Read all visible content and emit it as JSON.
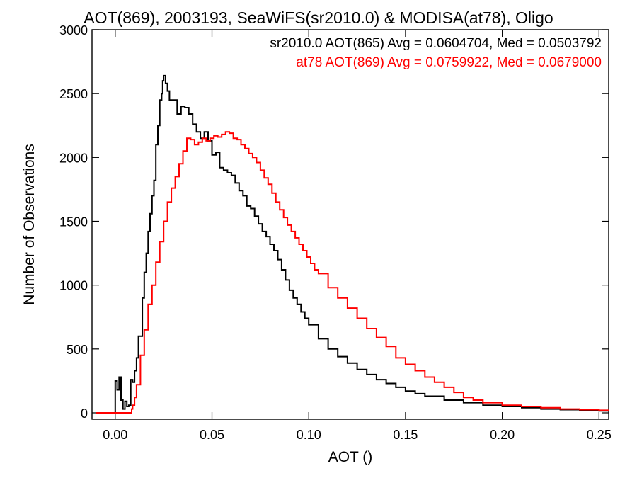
{
  "chart_data": {
    "type": "line",
    "title": "AOT(869), 2003193, SeaWiFS(sr2010.0) & MODISA(at78), Oligo",
    "xlabel": "AOT ()",
    "ylabel": "Number of Observations",
    "xlim": [
      -0.012,
      0.255
    ],
    "ylim": [
      -50,
      3000
    ],
    "x_ticks": [
      0.0,
      0.05,
      0.1,
      0.15,
      0.2,
      0.25
    ],
    "x_tick_labels": [
      "0.00",
      "0.05",
      "0.10",
      "0.15",
      "0.20",
      "0.25"
    ],
    "y_ticks": [
      0,
      500,
      1000,
      1500,
      2000,
      2500,
      3000
    ],
    "y_tick_labels": [
      "0",
      "500",
      "1000",
      "1500",
      "2000",
      "2500",
      "3000"
    ],
    "grid": false,
    "legend_position": "top-right",
    "colors": {
      "black_series": "#000000",
      "red_series": "#ff0000"
    },
    "series": [
      {
        "name": "sr2010.0 AOT(865) Avg = 0.0604704, Med = 0.0503792",
        "color": "#000000",
        "step": true,
        "points": [
          [
            -0.01,
            0
          ],
          [
            -0.005,
            0
          ],
          [
            -0.001,
            0
          ],
          [
            0.0,
            250
          ],
          [
            0.001,
            180
          ],
          [
            0.002,
            280
          ],
          [
            0.003,
            100
          ],
          [
            0.004,
            30
          ],
          [
            0.005,
            90
          ],
          [
            0.006,
            50
          ],
          [
            0.007,
            60
          ],
          [
            0.008,
            260
          ],
          [
            0.009,
            240
          ],
          [
            0.01,
            330
          ],
          [
            0.011,
            430
          ],
          [
            0.012,
            600
          ],
          [
            0.014,
            900
          ],
          [
            0.015,
            1100
          ],
          [
            0.016,
            1250
          ],
          [
            0.017,
            1420
          ],
          [
            0.018,
            1560
          ],
          [
            0.019,
            1700
          ],
          [
            0.02,
            1820
          ],
          [
            0.021,
            2100
          ],
          [
            0.022,
            2250
          ],
          [
            0.023,
            2450
          ],
          [
            0.024,
            2500
          ],
          [
            0.0245,
            2600
          ],
          [
            0.025,
            2640
          ],
          [
            0.026,
            2580
          ],
          [
            0.027,
            2520
          ],
          [
            0.028,
            2450
          ],
          [
            0.03,
            2450
          ],
          [
            0.032,
            2340
          ],
          [
            0.034,
            2400
          ],
          [
            0.036,
            2390
          ],
          [
            0.038,
            2340
          ],
          [
            0.04,
            2260
          ],
          [
            0.042,
            2200
          ],
          [
            0.044,
            2150
          ],
          [
            0.046,
            2200
          ],
          [
            0.048,
            2130
          ],
          [
            0.05,
            2020
          ],
          [
            0.052,
            2040
          ],
          [
            0.054,
            1920
          ],
          [
            0.056,
            1900
          ],
          [
            0.058,
            1880
          ],
          [
            0.06,
            1860
          ],
          [
            0.062,
            1800
          ],
          [
            0.064,
            1740
          ],
          [
            0.066,
            1700
          ],
          [
            0.068,
            1620
          ],
          [
            0.07,
            1600
          ],
          [
            0.072,
            1540
          ],
          [
            0.074,
            1480
          ],
          [
            0.076,
            1420
          ],
          [
            0.078,
            1380
          ],
          [
            0.08,
            1320
          ],
          [
            0.082,
            1270
          ],
          [
            0.084,
            1200
          ],
          [
            0.086,
            1120
          ],
          [
            0.088,
            1040
          ],
          [
            0.09,
            960
          ],
          [
            0.092,
            900
          ],
          [
            0.094,
            850
          ],
          [
            0.096,
            790
          ],
          [
            0.098,
            740
          ],
          [
            0.1,
            690
          ],
          [
            0.105,
            580
          ],
          [
            0.11,
            500
          ],
          [
            0.115,
            440
          ],
          [
            0.12,
            390
          ],
          [
            0.125,
            340
          ],
          [
            0.13,
            300
          ],
          [
            0.135,
            260
          ],
          [
            0.14,
            230
          ],
          [
            0.145,
            200
          ],
          [
            0.15,
            170
          ],
          [
            0.155,
            150
          ],
          [
            0.16,
            130
          ],
          [
            0.17,
            100
          ],
          [
            0.18,
            80
          ],
          [
            0.19,
            60
          ],
          [
            0.2,
            50
          ],
          [
            0.21,
            40
          ],
          [
            0.22,
            30
          ],
          [
            0.23,
            25
          ],
          [
            0.24,
            20
          ],
          [
            0.25,
            15
          ],
          [
            0.255,
            10
          ]
        ]
      },
      {
        "name": "at78 AOT(869) Avg = 0.0759922, Med = 0.0679000",
        "color": "#ff0000",
        "step": true,
        "points": [
          [
            -0.01,
            0
          ],
          [
            0.0,
            0
          ],
          [
            0.005,
            0
          ],
          [
            0.008,
            0
          ],
          [
            0.0085,
            30
          ],
          [
            0.009,
            60
          ],
          [
            0.01,
            120
          ],
          [
            0.011,
            220
          ],
          [
            0.013,
            450
          ],
          [
            0.015,
            650
          ],
          [
            0.017,
            850
          ],
          [
            0.019,
            1000
          ],
          [
            0.021,
            1180
          ],
          [
            0.023,
            1340
          ],
          [
            0.025,
            1500
          ],
          [
            0.027,
            1650
          ],
          [
            0.029,
            1760
          ],
          [
            0.031,
            1850
          ],
          [
            0.033,
            1950
          ],
          [
            0.035,
            2050
          ],
          [
            0.037,
            2150
          ],
          [
            0.039,
            2140
          ],
          [
            0.041,
            2100
          ],
          [
            0.043,
            2120
          ],
          [
            0.045,
            2150
          ],
          [
            0.047,
            2130
          ],
          [
            0.049,
            2150
          ],
          [
            0.051,
            2170
          ],
          [
            0.053,
            2160
          ],
          [
            0.055,
            2180
          ],
          [
            0.057,
            2200
          ],
          [
            0.059,
            2190
          ],
          [
            0.061,
            2150
          ],
          [
            0.063,
            2140
          ],
          [
            0.065,
            2100
          ],
          [
            0.067,
            2070
          ],
          [
            0.069,
            2030
          ],
          [
            0.071,
            2000
          ],
          [
            0.073,
            1960
          ],
          [
            0.075,
            1900
          ],
          [
            0.077,
            1840
          ],
          [
            0.079,
            1790
          ],
          [
            0.081,
            1720
          ],
          [
            0.083,
            1650
          ],
          [
            0.085,
            1590
          ],
          [
            0.087,
            1530
          ],
          [
            0.089,
            1470
          ],
          [
            0.091,
            1420
          ],
          [
            0.093,
            1370
          ],
          [
            0.095,
            1320
          ],
          [
            0.097,
            1270
          ],
          [
            0.099,
            1220
          ],
          [
            0.101,
            1170
          ],
          [
            0.103,
            1120
          ],
          [
            0.105,
            1090
          ],
          [
            0.11,
            980
          ],
          [
            0.115,
            900
          ],
          [
            0.12,
            820
          ],
          [
            0.125,
            740
          ],
          [
            0.13,
            660
          ],
          [
            0.135,
            590
          ],
          [
            0.14,
            520
          ],
          [
            0.145,
            430
          ],
          [
            0.15,
            380
          ],
          [
            0.155,
            330
          ],
          [
            0.16,
            280
          ],
          [
            0.165,
            240
          ],
          [
            0.17,
            200
          ],
          [
            0.175,
            160
          ],
          [
            0.18,
            120
          ],
          [
            0.185,
            100
          ],
          [
            0.19,
            80
          ],
          [
            0.2,
            60
          ],
          [
            0.21,
            50
          ],
          [
            0.22,
            40
          ],
          [
            0.23,
            30
          ],
          [
            0.24,
            25
          ],
          [
            0.25,
            20
          ],
          [
            0.255,
            15
          ]
        ]
      }
    ]
  }
}
